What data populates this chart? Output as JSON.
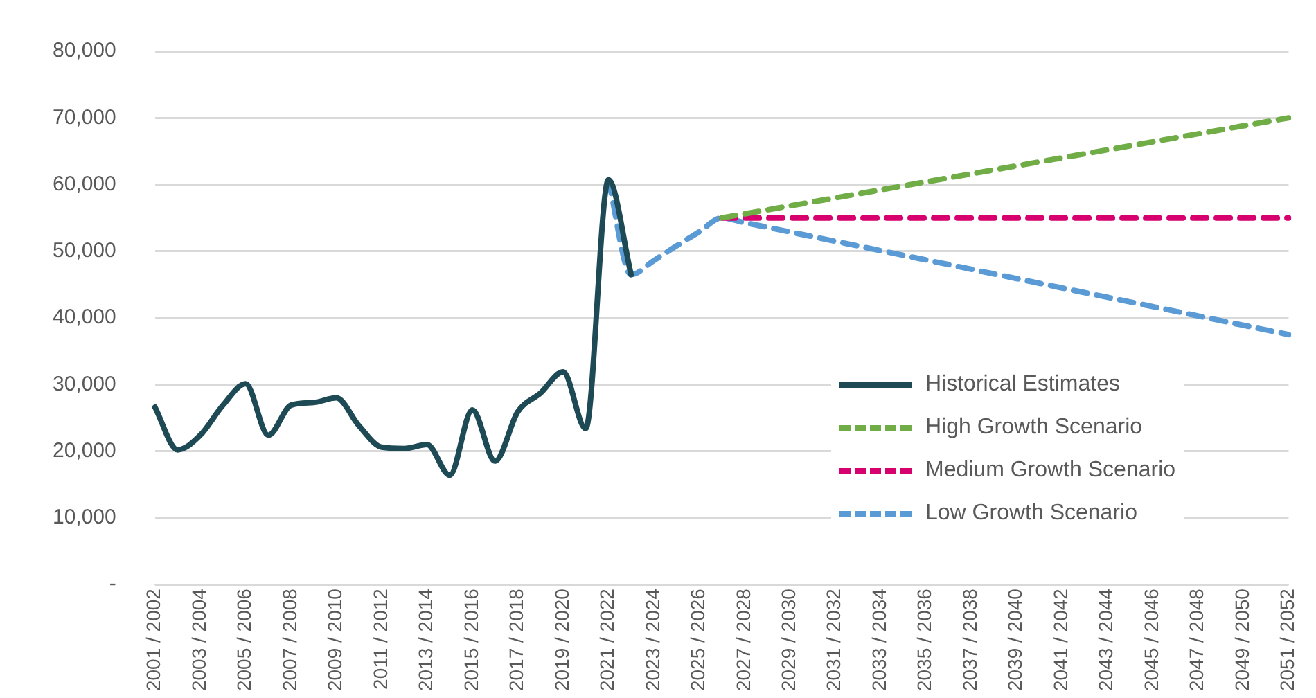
{
  "chart_data": {
    "type": "line",
    "categories": [
      "2001 / 2002",
      null,
      "2003 / 2004",
      null,
      "2005 / 2006",
      null,
      "2007 / 2008",
      null,
      "2009 / 2010",
      null,
      "2011 / 2012",
      null,
      "2013 / 2014",
      null,
      "2015 / 2016",
      null,
      "2017 / 2018",
      null,
      "2019 / 2020",
      null,
      "2021 / 2022",
      null,
      "2023 / 2024",
      null,
      "2025 / 2026",
      null,
      "2027 / 2028",
      null,
      "2029 / 2030",
      null,
      "2031 / 2032",
      null,
      "2033 / 2034",
      null,
      "2035 / 2036",
      null,
      "2037 / 2038",
      null,
      "2039 / 2040",
      null,
      "2041 / 2042",
      null,
      "2043 / 2044",
      null,
      "2045 / 2046",
      null,
      "2047 / 2048",
      null,
      "2049 / 2050",
      null,
      "2051 / 2052"
    ],
    "series": [
      {
        "name": "Historical Estimates",
        "color": "#1d4a55",
        "line_style": "solid",
        "values": [
          26600,
          20200,
          22400,
          26900,
          30100,
          22400,
          26900,
          27300,
          28000,
          23800,
          20600,
          20400,
          21000,
          16400,
          26200,
          18500,
          25900,
          28700,
          31900,
          23400,
          60700,
          46500,
          null,
          null,
          null,
          null,
          null,
          null,
          null,
          null,
          null,
          null,
          null,
          null,
          null,
          null,
          null,
          null,
          null,
          null,
          null,
          null,
          null,
          null,
          null,
          null,
          null,
          null,
          null,
          null,
          null
        ]
      },
      {
        "name": "High Growth Scenario",
        "color": "#70ad47",
        "line_style": "dashed",
        "values": [
          null,
          null,
          null,
          null,
          null,
          null,
          null,
          null,
          null,
          null,
          null,
          null,
          null,
          null,
          null,
          null,
          null,
          null,
          null,
          null,
          null,
          null,
          null,
          null,
          null,
          55000,
          55600,
          56200,
          56800,
          57400,
          58000,
          58600,
          59200,
          59800,
          60400,
          61000,
          61600,
          62200,
          62800,
          63400,
          64000,
          64600,
          65200,
          65800,
          66400,
          67000,
          67600,
          68200,
          68800,
          69400,
          70000
        ]
      },
      {
        "name": "Medium Growth Scenario",
        "color": "#d6006f",
        "line_style": "dashed",
        "values": [
          null,
          null,
          null,
          null,
          null,
          null,
          null,
          null,
          null,
          null,
          null,
          null,
          null,
          null,
          null,
          null,
          null,
          null,
          null,
          null,
          null,
          null,
          null,
          null,
          null,
          55000,
          55000,
          55000,
          55000,
          55000,
          55000,
          55000,
          55000,
          55000,
          55000,
          55000,
          55000,
          55000,
          55000,
          55000,
          55000,
          55000,
          55000,
          55000,
          55000,
          55000,
          55000,
          55000,
          55000,
          55000,
          55000
        ]
      },
      {
        "name": "Low Growth Scenario",
        "color": "#5b9bd5",
        "line_style": "dashed",
        "values": [
          null,
          null,
          null,
          null,
          null,
          null,
          null,
          null,
          null,
          null,
          null,
          null,
          null,
          null,
          null,
          null,
          null,
          null,
          null,
          null,
          60700,
          46500,
          48600,
          50800,
          52900,
          55000,
          54300,
          53600,
          52900,
          52200,
          51500,
          50800,
          50100,
          49400,
          48700,
          48000,
          47300,
          46600,
          45900,
          45200,
          44500,
          43800,
          43100,
          42400,
          41700,
          41000,
          40300,
          39600,
          38900,
          38200,
          37500
        ]
      }
    ],
    "ylim": [
      0,
      80000
    ],
    "yticks": [
      {
        "value": 0,
        "label": "-"
      },
      {
        "value": 10000,
        "label": "10,000"
      },
      {
        "value": 20000,
        "label": "20,000"
      },
      {
        "value": 30000,
        "label": "30,000"
      },
      {
        "value": 40000,
        "label": "40,000"
      },
      {
        "value": 50000,
        "label": "50,000"
      },
      {
        "value": 60000,
        "label": "60,000"
      },
      {
        "value": 70000,
        "label": "70,000"
      },
      {
        "value": 80000,
        "label": "80,000"
      }
    ],
    "grid": "y",
    "legend": "bottom right",
    "marker": "none"
  }
}
